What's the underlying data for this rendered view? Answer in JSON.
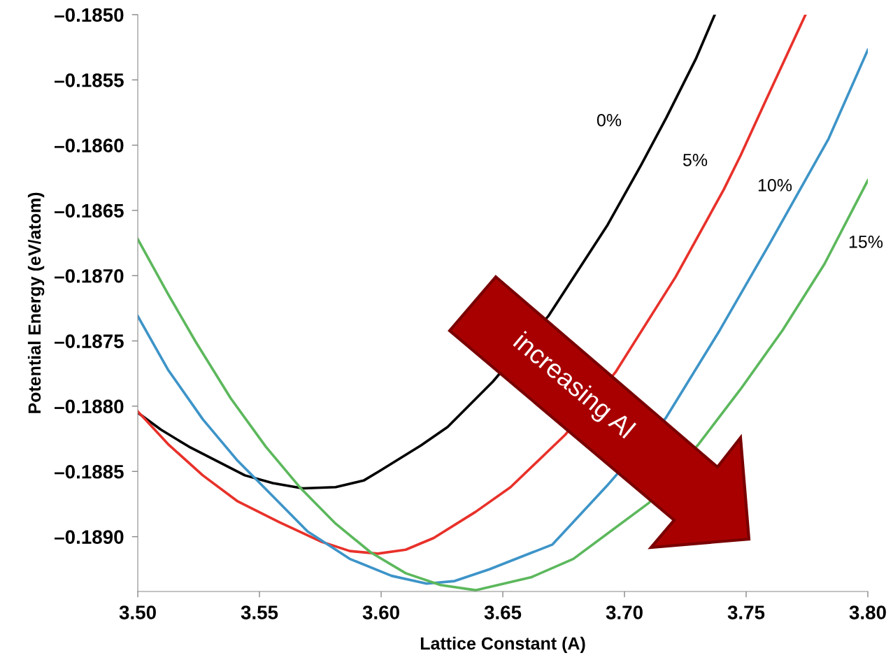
{
  "chart_data": {
    "type": "line",
    "xlabel": "Lattice Constant (A)",
    "ylabel": "Potential Energy (eV/atom)",
    "xlim": [
      3.5,
      3.8
    ],
    "ylim": [
      -0.18942,
      -0.185
    ],
    "xticks": [
      {
        "value": 3.5,
        "label": "3.50"
      },
      {
        "value": 3.55,
        "label": "3.55"
      },
      {
        "value": 3.6,
        "label": "3.60"
      },
      {
        "value": 3.65,
        "label": "3.65"
      },
      {
        "value": 3.7,
        "label": "3.70"
      },
      {
        "value": 3.75,
        "label": "3.75"
      },
      {
        "value": 3.8,
        "label": "3.80"
      }
    ],
    "yticks": [
      {
        "value": -0.185,
        "label": "–0.1850"
      },
      {
        "value": -0.1855,
        "label": "–0.1855"
      },
      {
        "value": -0.186,
        "label": "–0.1860"
      },
      {
        "value": -0.1865,
        "label": "–0.1865"
      },
      {
        "value": -0.187,
        "label": "–0.1870"
      },
      {
        "value": -0.1875,
        "label": "–0.1875"
      },
      {
        "value": -0.188,
        "label": "–0.1880"
      },
      {
        "value": -0.1885,
        "label": "–0.1885"
      },
      {
        "value": -0.189,
        "label": "–0.1890"
      }
    ],
    "grid": false,
    "legend": false,
    "marker": "none",
    "line_style": "solid",
    "series": [
      {
        "name": "0%",
        "color": "#000000",
        "x": [
          3.5,
          3.5095,
          3.521,
          3.5325,
          3.544,
          3.5555,
          3.5678,
          3.5813,
          3.5928,
          3.5991,
          3.6164,
          3.6273,
          3.646,
          3.6687,
          3.6931,
          3.7069,
          3.7172,
          3.7293,
          3.7371
        ],
        "values": [
          -0.18805,
          -0.18818,
          -0.18831,
          -0.18842,
          -0.18853,
          -0.18859,
          -0.18863,
          -0.18862,
          -0.18857,
          -0.1885,
          -0.1883,
          -0.18816,
          -0.18781,
          -0.18731,
          -0.18661,
          -0.18615,
          -0.18579,
          -0.18534,
          -0.185
        ]
      },
      {
        "name": "5%",
        "color": "#e8312a",
        "x": [
          3.5,
          3.5124,
          3.5267,
          3.5411,
          3.5583,
          3.5756,
          3.5871,
          3.5986,
          3.6101,
          3.6216,
          3.6388,
          3.6532,
          3.6756,
          3.6963,
          3.721,
          3.7408,
          3.7477,
          3.758,
          3.7744
        ],
        "values": [
          -0.18804,
          -0.18829,
          -0.18853,
          -0.18873,
          -0.18889,
          -0.18904,
          -0.18911,
          -0.18913,
          -0.1891,
          -0.18901,
          -0.18881,
          -0.18862,
          -0.18822,
          -0.18774,
          -0.18701,
          -0.18634,
          -0.18608,
          -0.18566,
          -0.185
        ]
      },
      {
        "name": "10%",
        "color": "#3d94c8",
        "x": [
          3.5,
          3.5124,
          3.5267,
          3.5411,
          3.5555,
          3.5698,
          3.5871,
          3.6043,
          3.6187,
          3.6302,
          3.6445,
          3.6704,
          3.6928,
          3.717,
          3.7391,
          3.7598,
          3.7839,
          3.8
        ],
        "values": [
          -0.18731,
          -0.18772,
          -0.1881,
          -0.18842,
          -0.18869,
          -0.18896,
          -0.18917,
          -0.1893,
          -0.18936,
          -0.18934,
          -0.18925,
          -0.18906,
          -0.18861,
          -0.18809,
          -0.18742,
          -0.18675,
          -0.18595,
          -0.18527
        ]
      },
      {
        "name": "15%",
        "color": "#5cb85c",
        "x": [
          3.5,
          3.5124,
          3.5239,
          3.5382,
          3.5526,
          3.567,
          3.5813,
          3.5957,
          3.6101,
          3.6244,
          3.6388,
          3.6618,
          3.679,
          3.7101,
          3.7305,
          3.7477,
          3.7649,
          3.7822,
          3.8
        ],
        "values": [
          -0.18672,
          -0.18714,
          -0.18751,
          -0.18794,
          -0.18831,
          -0.18863,
          -0.1889,
          -0.18912,
          -0.18928,
          -0.18937,
          -0.18941,
          -0.18931,
          -0.18917,
          -0.18874,
          -0.18829,
          -0.18787,
          -0.18742,
          -0.18691,
          -0.18627
        ]
      }
    ],
    "annotations": [
      "increasing Al"
    ]
  }
}
